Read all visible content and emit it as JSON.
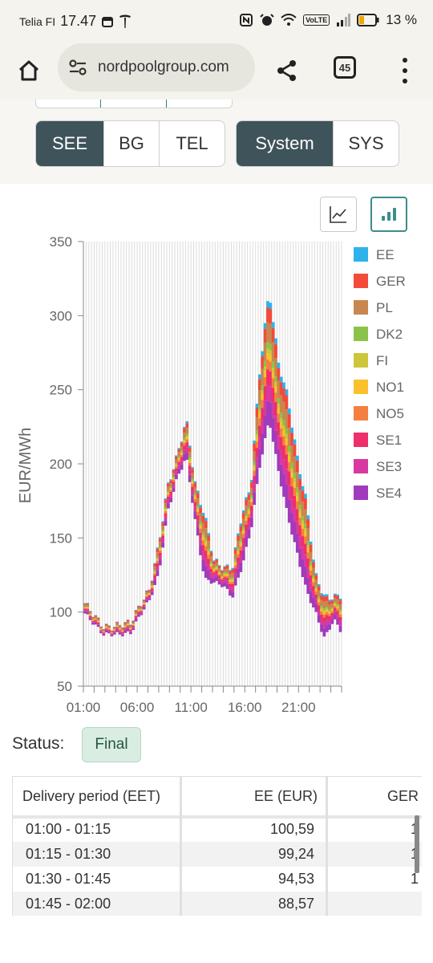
{
  "status_bar": {
    "carrier": "Telia FI",
    "time": "17.47",
    "battery": "13 %",
    "volte": "VoLTE"
  },
  "browser": {
    "url": "nordpoolgroup.com",
    "tab_count": "45"
  },
  "filters": {
    "areas": [
      {
        "label": "SEE",
        "active": true
      },
      {
        "label": "BG",
        "active": false
      },
      {
        "label": "TEL",
        "active": false
      }
    ],
    "system": [
      {
        "label": "System",
        "active": true
      },
      {
        "label": "SYS",
        "active": false
      }
    ]
  },
  "chart_view": {
    "options": [
      "line-chart-icon",
      "bar-chart-icon"
    ],
    "active": "bar-chart-icon"
  },
  "chart_data": {
    "type": "bar",
    "ylabel": "EUR/MWh",
    "ylim": [
      50,
      350
    ],
    "yticks": [
      "50",
      "100",
      "150",
      "200",
      "250",
      "300",
      "350"
    ],
    "xticks": [
      "01:00",
      "06:00",
      "11:00",
      "16:00",
      "21:00"
    ],
    "grid": true,
    "legend_position": "right",
    "series_colors": {
      "EE": "#2eb2ec",
      "GER": "#f44a3a",
      "PL": "#c8874f",
      "DK2": "#8bc34a",
      "FI": "#cdc63a",
      "NO1": "#fbc02d",
      "NO5": "#f57f41",
      "SE1": "#ee2f6b",
      "SE3": "#d63aa0",
      "SE4": "#a13bbd"
    },
    "series": [
      {
        "name": "EE"
      },
      {
        "name": "GER"
      },
      {
        "name": "PL"
      },
      {
        "name": "DK2"
      },
      {
        "name": "FI"
      },
      {
        "name": "NO1"
      },
      {
        "name": "NO5"
      },
      {
        "name": "SE1"
      },
      {
        "name": "SE3"
      },
      {
        "name": "SE4"
      }
    ],
    "hourly_upper": [
      106,
      98,
      90,
      90,
      92,
      93,
      105,
      115,
      145,
      185,
      205,
      230,
      185,
      165,
      135,
      130,
      130,
      165,
      185,
      265,
      317,
      268,
      245,
      205,
      175,
      125,
      110,
      110,
      112
    ],
    "hourly_lower": [
      99,
      92,
      85,
      85,
      85,
      86,
      98,
      108,
      125,
      168,
      190,
      205,
      160,
      122,
      120,
      118,
      110,
      130,
      155,
      200,
      230,
      195,
      165,
      140,
      115,
      100,
      82,
      95,
      85
    ]
  },
  "status": {
    "label": "Status:",
    "value": "Final"
  },
  "table": {
    "headers": [
      "Delivery period (EET)",
      "EE (EUR)",
      "GER"
    ],
    "rows": [
      {
        "period": "01:00 - 01:15",
        "ee": "100,59",
        "ger": "1"
      },
      {
        "period": "01:15 - 01:30",
        "ee": "99,24",
        "ger": "1"
      },
      {
        "period": "01:30 - 01:45",
        "ee": "94,53",
        "ger": "1"
      },
      {
        "period": "01:45 - 02:00",
        "ee": "88,57",
        "ger": ""
      }
    ]
  }
}
